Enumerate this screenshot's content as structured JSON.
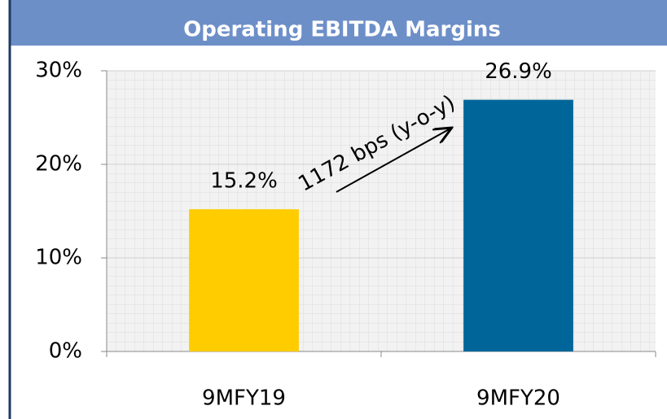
{
  "chart_data": {
    "type": "bar",
    "title": "Operating EBITDA Margins",
    "categories": [
      "9MFY19",
      "9MFY20"
    ],
    "values": [
      15.2,
      26.9
    ],
    "value_labels": [
      "15.2%",
      "26.9%"
    ],
    "colors": [
      "#ffcc00",
      "#006699"
    ],
    "ylim": [
      0,
      30
    ],
    "yticks": [
      {
        "value": 0,
        "label": "0%"
      },
      {
        "value": 10,
        "label": "10%"
      },
      {
        "value": 20,
        "label": "20%"
      },
      {
        "value": 30,
        "label": "30%"
      }
    ],
    "grid": true,
    "annotation": "1172 bps (y-o-y)"
  }
}
